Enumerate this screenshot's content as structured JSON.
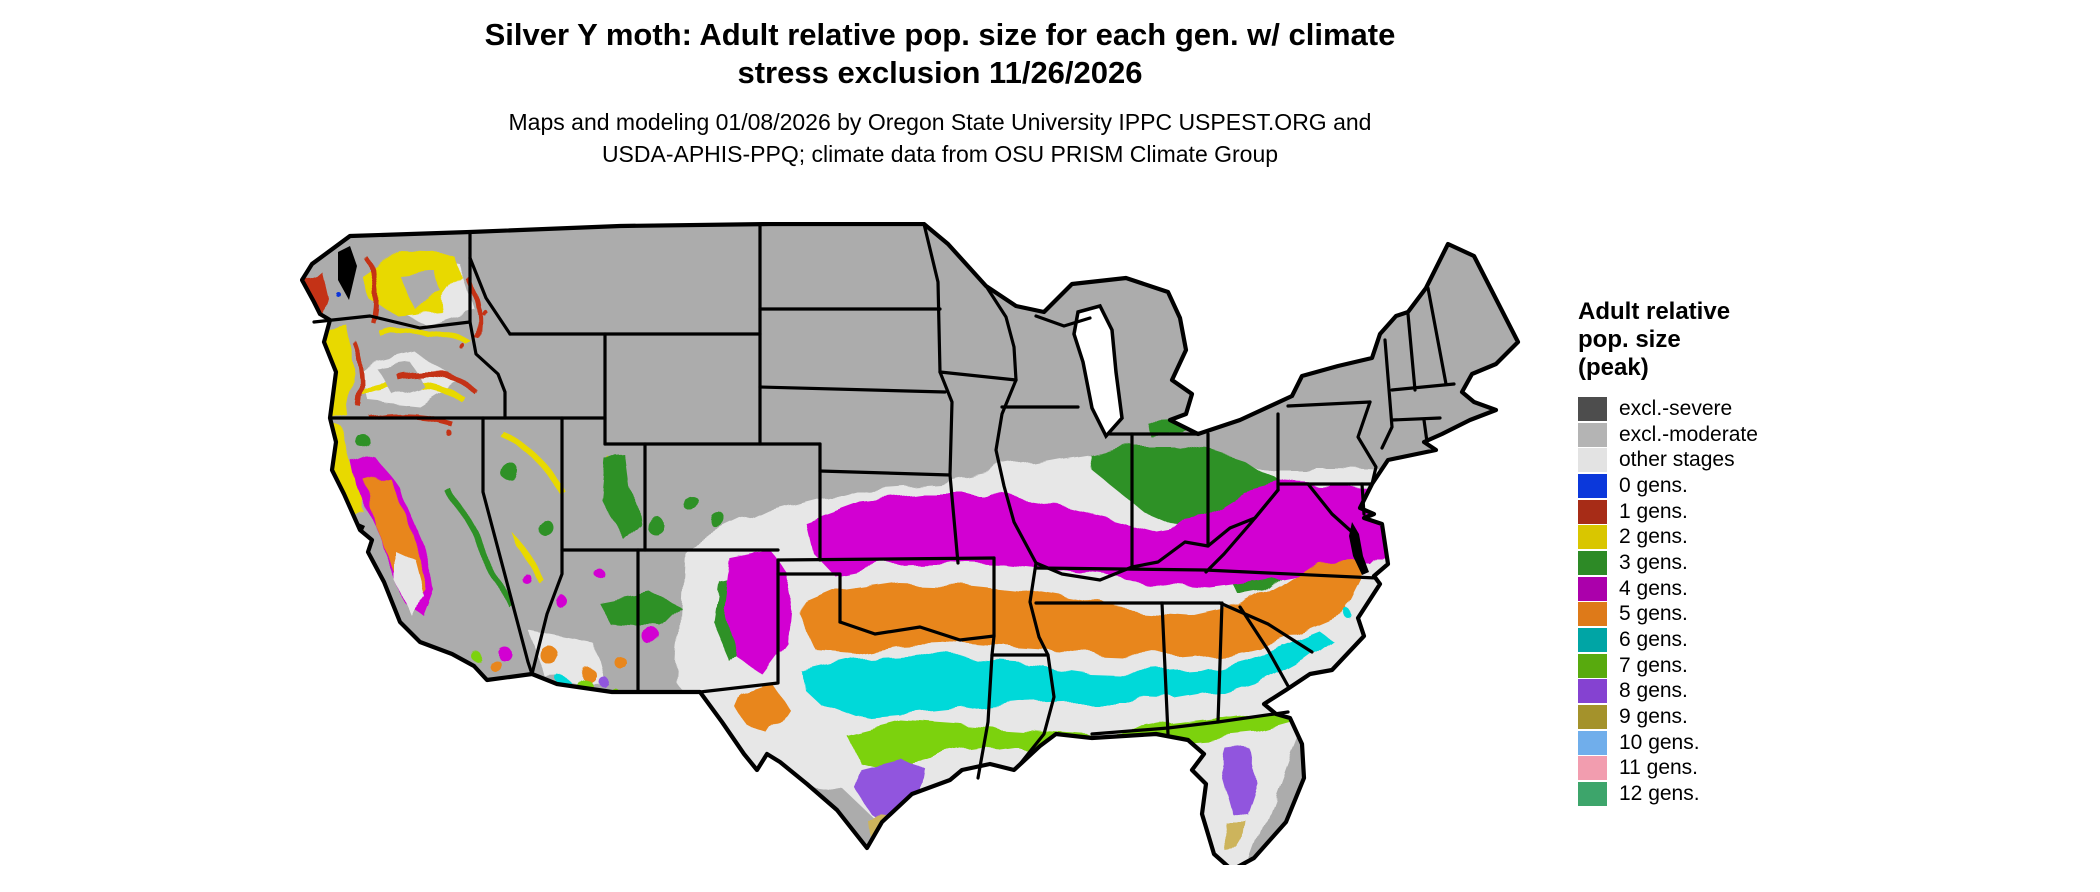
{
  "title": {
    "line1": "Silver Y moth: Adult relative pop. size for each gen. w/ climate",
    "line2": "stress exclusion 11/26/2026"
  },
  "subtitle": {
    "line1": "Maps and modeling 01/08/2026 by Oregon State University IPPC USPEST.ORG and",
    "line2": "USDA-APHIS-PPQ; climate data from OSU PRISM Climate Group"
  },
  "legend": {
    "title_lines": [
      "Adult relative",
      "pop. size",
      "(peak)"
    ],
    "items": [
      {
        "label": "excl.-severe",
        "color": "#4D4D4D"
      },
      {
        "label": "excl.-moderate",
        "color": "#B4B4B4"
      },
      {
        "label": "other stages",
        "color": "#E3E3E3"
      },
      {
        "label": "0 gens.",
        "color": "#0B38DB"
      },
      {
        "label": "1 gens.",
        "color": "#A72C17"
      },
      {
        "label": "2 gens.",
        "color": "#D9C600"
      },
      {
        "label": "3 gens.",
        "color": "#2D8A26"
      },
      {
        "label": "4 gens.",
        "color": "#AB00AB"
      },
      {
        "label": "5 gens.",
        "color": "#DE7A19"
      },
      {
        "label": "6 gens.",
        "color": "#00A5A5"
      },
      {
        "label": "7 gens.",
        "color": "#58AA0E"
      },
      {
        "label": "8 gens.",
        "color": "#8542D1"
      },
      {
        "label": "9 gens.",
        "color": "#A4922B"
      },
      {
        "label": "10 gens.",
        "color": "#70AEEB"
      },
      {
        "label": "11 gens.",
        "color": "#F29DAF"
      },
      {
        "label": "12 gens.",
        "color": "#3DA56B"
      }
    ]
  },
  "map": {
    "palette": {
      "excl_moderate": "#ACACAC",
      "other_stages": "#E7E7E7",
      "gens0": "#0A36D9",
      "gens1": "#C43112",
      "gens2": "#E8D900",
      "gens3": "#2E9126",
      "gens3_light": "#7CC97A",
      "gens4": "#D203D2",
      "gens5": "#E8861C",
      "gens6": "#00D9D9",
      "gens7": "#7CD20A",
      "gens8": "#9155DE",
      "gens9": "#CDB45C",
      "gens10": "#74B2EF",
      "water": "#000000",
      "lake": "#FFFFFF",
      "border": "#000000"
    }
  }
}
